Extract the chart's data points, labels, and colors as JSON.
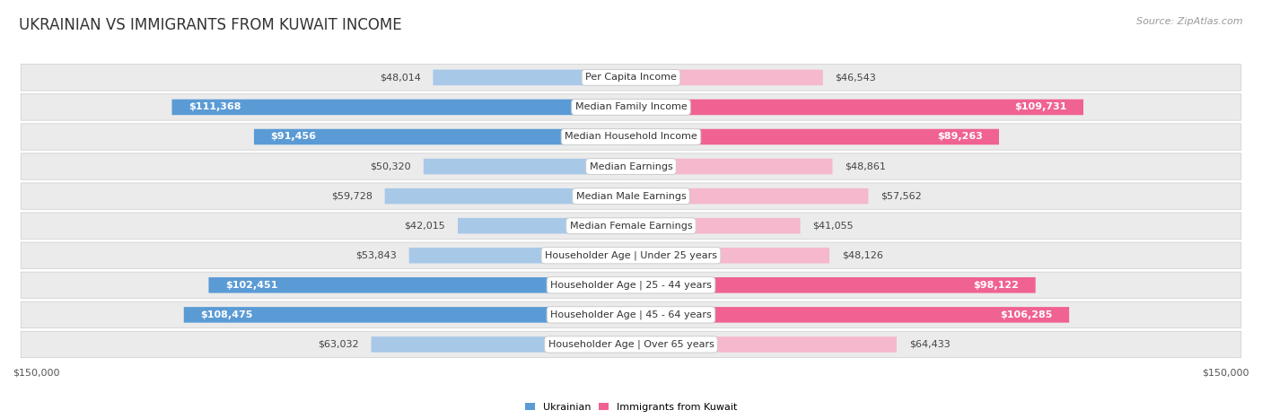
{
  "title": "UKRAINIAN VS IMMIGRANTS FROM KUWAIT INCOME",
  "source": "Source: ZipAtlas.com",
  "categories": [
    "Per Capita Income",
    "Median Family Income",
    "Median Household Income",
    "Median Earnings",
    "Median Male Earnings",
    "Median Female Earnings",
    "Householder Age | Under 25 years",
    "Householder Age | 25 - 44 years",
    "Householder Age | 45 - 64 years",
    "Householder Age | Over 65 years"
  ],
  "ukrainian_values": [
    48014,
    111368,
    91456,
    50320,
    59728,
    42015,
    53843,
    102451,
    108475,
    63032
  ],
  "kuwait_values": [
    46543,
    109731,
    89263,
    48861,
    57562,
    41055,
    48126,
    98122,
    106285,
    64433
  ],
  "ukrainian_labels": [
    "$48,014",
    "$111,368",
    "$91,456",
    "$50,320",
    "$59,728",
    "$42,015",
    "$53,843",
    "$102,451",
    "$108,475",
    "$63,032"
  ],
  "kuwait_labels": [
    "$46,543",
    "$109,731",
    "$89,263",
    "$48,861",
    "$57,562",
    "$41,055",
    "$48,126",
    "$98,122",
    "$106,285",
    "$64,433"
  ],
  "ukrainian_color_light": "#a8c8e8",
  "kuwait_color_light": "#f5b8cc",
  "ukrainian_color_dark": "#5b9bd5",
  "kuwait_color_dark": "#f06292",
  "threshold": 65000,
  "max_value": 150000,
  "x_label_left": "$150,000",
  "x_label_right": "$150,000",
  "legend_ukrainian": "Ukrainian",
  "legend_kuwait": "Immigrants from Kuwait",
  "row_bg": "#ebebeb",
  "row_sep": "#ffffff",
  "title_fontsize": 12,
  "source_fontsize": 8,
  "label_fontsize": 8,
  "value_fontsize": 8,
  "category_fontsize": 8
}
